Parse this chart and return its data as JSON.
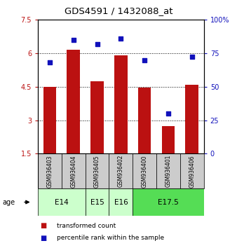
{
  "title": "GDS4591 / 1432088_at",
  "samples": [
    "GSM936403",
    "GSM936404",
    "GSM936405",
    "GSM936402",
    "GSM936400",
    "GSM936401",
    "GSM936406"
  ],
  "bar_values": [
    4.5,
    6.15,
    4.75,
    5.9,
    4.45,
    2.75,
    4.6
  ],
  "scatter_values": [
    5.6,
    6.6,
    6.4,
    6.65,
    5.7,
    3.3,
    5.85
  ],
  "bar_bottom": 1.5,
  "ylim_left": [
    1.5,
    7.5
  ],
  "ylim_right": [
    0,
    100
  ],
  "yticks_left": [
    1.5,
    3.0,
    4.5,
    6.0,
    7.5
  ],
  "ytick_labels_left": [
    "1.5",
    "3",
    "4.5",
    "6",
    "7.5"
  ],
  "yticks_right": [
    0,
    25,
    50,
    75,
    100
  ],
  "ytick_labels_right": [
    "0",
    "25",
    "50",
    "75",
    "100%"
  ],
  "bar_color": "#bb1111",
  "scatter_color": "#1111bb",
  "grid_yticks": [
    3.0,
    4.5,
    6.0
  ],
  "ages": [
    {
      "label": "E14",
      "samples": [
        "GSM936403",
        "GSM936404"
      ],
      "color": "#ccffcc"
    },
    {
      "label": "E15",
      "samples": [
        "GSM936405"
      ],
      "color": "#ccffcc"
    },
    {
      "label": "E16",
      "samples": [
        "GSM936402"
      ],
      "color": "#ccffcc"
    },
    {
      "label": "E17.5",
      "samples": [
        "GSM936400",
        "GSM936401",
        "GSM936406"
      ],
      "color": "#55dd55"
    }
  ],
  "legend_bar_label": "transformed count",
  "legend_scatter_label": "percentile rank within the sample",
  "age_label": "age",
  "sample_box_color": "#cccccc"
}
